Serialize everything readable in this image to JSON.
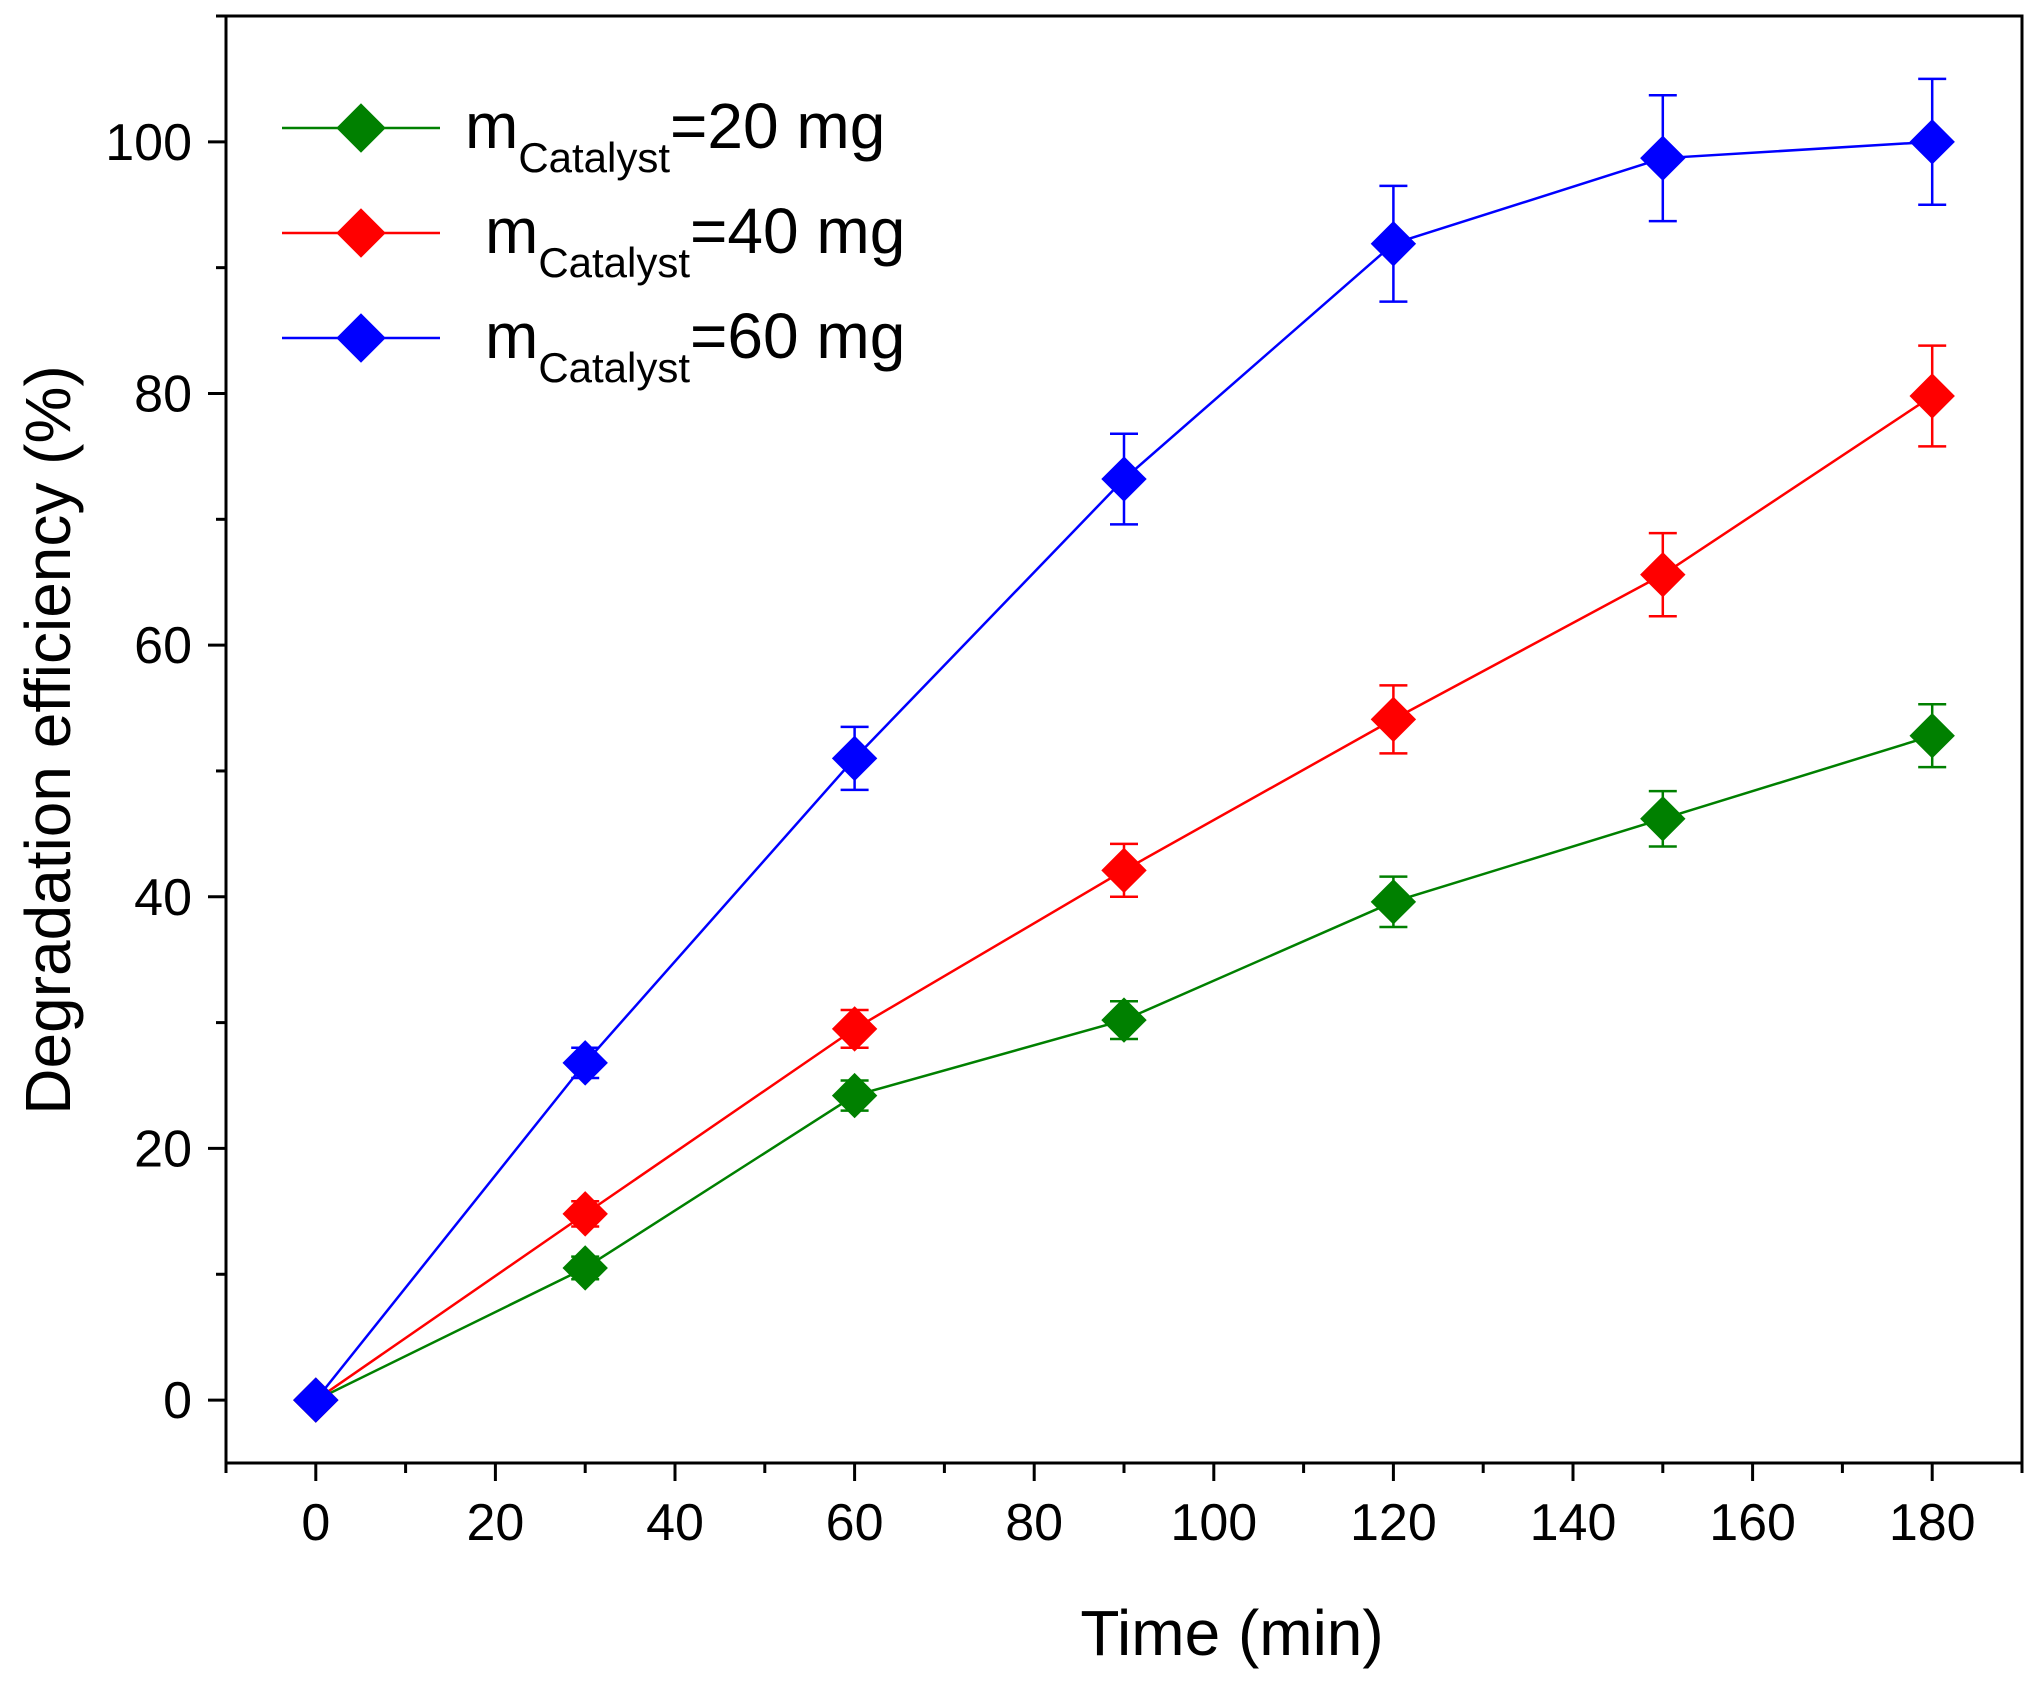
{
  "chart_data": {
    "type": "line",
    "title": "",
    "xlabel": "Time (min)",
    "ylabel": "Degradation efficiency (%)",
    "xlim": [
      -10,
      190
    ],
    "ylim": [
      -5,
      110
    ],
    "xticks": [
      0,
      20,
      40,
      60,
      80,
      100,
      120,
      140,
      160,
      180
    ],
    "yticks": [
      0,
      20,
      40,
      60,
      80,
      100
    ],
    "x": [
      0,
      30,
      60,
      90,
      120,
      150,
      180
    ],
    "legend_position": "top-left",
    "series": [
      {
        "name": "mCatalyst=20 mg",
        "label_main": "m",
        "label_sub": "Catalyst",
        "label_rest": "=20 mg",
        "color": "#008000",
        "marker": "diamond",
        "values": [
          0,
          10.5,
          24.2,
          30.2,
          39.6,
          46.2,
          52.8
        ],
        "errors": [
          0,
          0.9,
          1.2,
          1.5,
          2.0,
          2.2,
          2.5
        ]
      },
      {
        "name": "mCatalyst=40 mg",
        "label_main": "m",
        "label_sub": "Catalyst",
        "label_rest": "=40 mg",
        "color": "#ff0000",
        "marker": "diamond",
        "values": [
          0,
          14.8,
          29.5,
          42.1,
          54.1,
          65.6,
          79.8
        ],
        "errors": [
          0,
          1.0,
          1.5,
          2.1,
          2.7,
          3.3,
          4.0
        ]
      },
      {
        "name": "mCatalyst=60 mg",
        "label_main": "m",
        "label_sub": "Catalyst",
        "label_rest": "=60 mg",
        "color": "#0000ff",
        "marker": "diamond",
        "values": [
          0,
          26.8,
          51.0,
          73.2,
          91.9,
          98.7,
          100.0
        ],
        "errors": [
          0,
          1.2,
          2.5,
          3.6,
          4.6,
          5.0,
          5.0
        ]
      }
    ]
  }
}
